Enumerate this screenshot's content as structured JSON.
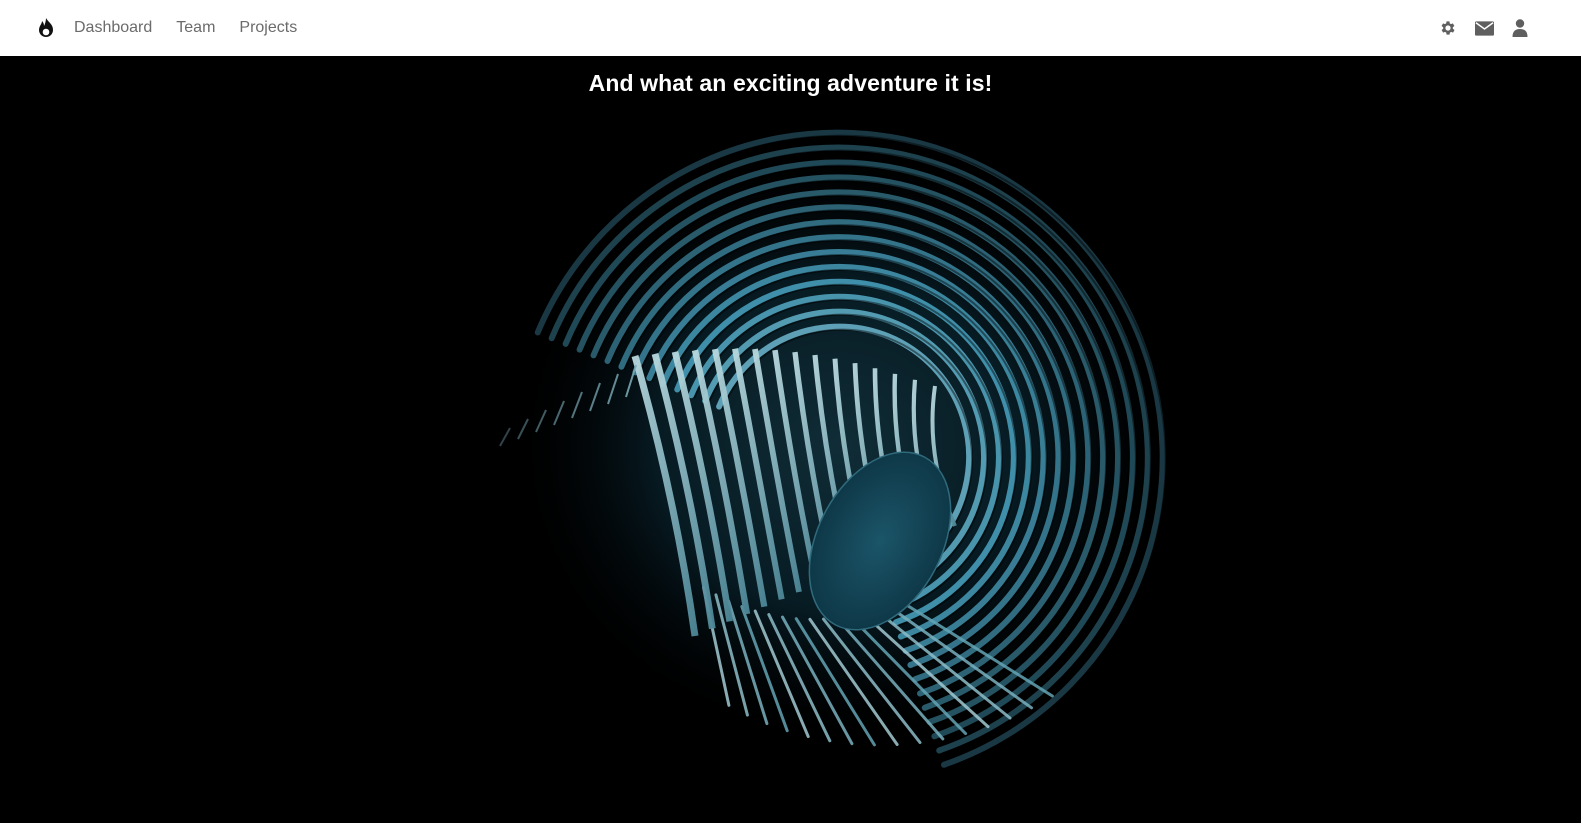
{
  "header": {
    "brand_icon": "flame-icon",
    "nav": [
      {
        "label": "Dashboard"
      },
      {
        "label": "Team"
      },
      {
        "label": "Projects"
      }
    ],
    "actions": [
      {
        "icon": "gear-icon"
      },
      {
        "icon": "envelope-icon"
      },
      {
        "icon": "user-icon"
      }
    ]
  },
  "hero": {
    "title": "And what an exciting adventure it is!",
    "artwork": "spiral-artwork",
    "colors": {
      "background": "#000000",
      "spiral_dark": "#0f3a4a",
      "spiral_mid": "#2c6477",
      "spiral_light": "#9fc6cf"
    }
  },
  "colors": {
    "topbar_bg": "#ffffff",
    "nav_text": "#6b6b6b",
    "icon": "#5f5f5f"
  }
}
